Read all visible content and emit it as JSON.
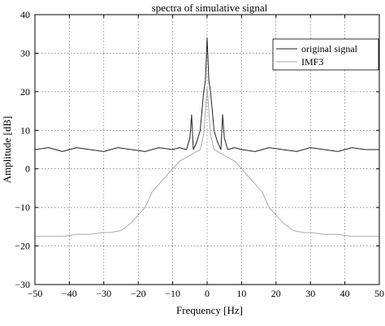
{
  "chart_data": {
    "type": "line",
    "title": "spectra of simulative signal",
    "xlabel": "Frequency [Hz]",
    "ylabel": "Amplitude [dB]",
    "xlim": [
      -50,
      50
    ],
    "ylim": [
      -30,
      40
    ],
    "xticks": [
      -50,
      -40,
      -30,
      -20,
      -10,
      0,
      10,
      20,
      30,
      40,
      50
    ],
    "yticks": [
      -30,
      -20,
      -10,
      0,
      10,
      20,
      30,
      40
    ],
    "grid": true,
    "legend_position": "top-right",
    "series": [
      {
        "name": "original signal",
        "color": "#222222",
        "x": [
          -50,
          -46,
          -42,
          -38,
          -34,
          -30,
          -26,
          -22,
          -18,
          -14,
          -10,
          -8,
          -6,
          -5,
          -4.5,
          -4,
          -3,
          -2,
          -1.5,
          -1,
          -0.5,
          0,
          0.5,
          1,
          1.5,
          2,
          3,
          4,
          4.5,
          5,
          6,
          8,
          10,
          14,
          18,
          22,
          26,
          30,
          34,
          38,
          42,
          46,
          50
        ],
        "y": [
          5,
          5.5,
          4.5,
          5.5,
          5,
          4.5,
          5.5,
          5,
          4.5,
          5.5,
          5,
          5.5,
          5,
          8,
          14,
          5,
          7,
          10,
          15,
          20,
          23,
          34,
          23,
          20,
          15,
          10,
          7,
          5,
          14,
          8,
          5,
          5.5,
          5,
          4.5,
          5.5,
          5,
          4.5,
          5.5,
          5,
          4.5,
          5.5,
          5,
          5
        ]
      },
      {
        "name": "IMF3",
        "color": "#aaaaaa",
        "x": [
          -50,
          -46,
          -42,
          -38,
          -34,
          -30,
          -28,
          -25,
          -22,
          -20,
          -18,
          -16,
          -14,
          -12,
          -10,
          -8,
          -6,
          -4,
          -2,
          -1,
          0,
          1,
          2,
          4,
          6,
          8,
          10,
          12,
          14,
          16,
          18,
          20,
          22,
          25,
          28,
          30,
          34,
          38,
          42,
          46,
          50
        ],
        "y": [
          -17.5,
          -17.5,
          -17.5,
          -17,
          -17,
          -16.5,
          -16.5,
          -16,
          -14,
          -12,
          -10,
          -6,
          -4,
          -2,
          0,
          2,
          3,
          4,
          5,
          9,
          21,
          9,
          5,
          4,
          3,
          2,
          0,
          -2,
          -4,
          -6,
          -10,
          -12,
          -14,
          -16,
          -16.5,
          -16.5,
          -17,
          -17,
          -17.5,
          -17.5,
          -17.5
        ]
      }
    ]
  }
}
